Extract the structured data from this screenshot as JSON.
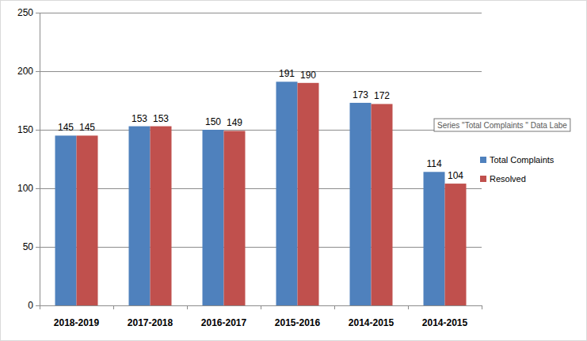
{
  "chart_data": {
    "type": "bar",
    "categories": [
      "2018-2019",
      "2017-2018",
      "2016-2017",
      "2015-2016",
      "2014-2015",
      "2014-2015"
    ],
    "series": [
      {
        "name": "Total Complaints",
        "color": "#4f81bd",
        "values": [
          145,
          153,
          150,
          191,
          173,
          114
        ]
      },
      {
        "name": "Resolved",
        "color": "#c0504d",
        "values": [
          145,
          153,
          149,
          190,
          172,
          104
        ]
      }
    ],
    "ylim": [
      0,
      250
    ],
    "yticks": [
      0,
      50,
      100,
      150,
      200,
      250
    ],
    "grid": true,
    "legend": "right",
    "data_labels": true,
    "annotations": [
      "Series \"Total Complaints \" Data Labe"
    ]
  }
}
